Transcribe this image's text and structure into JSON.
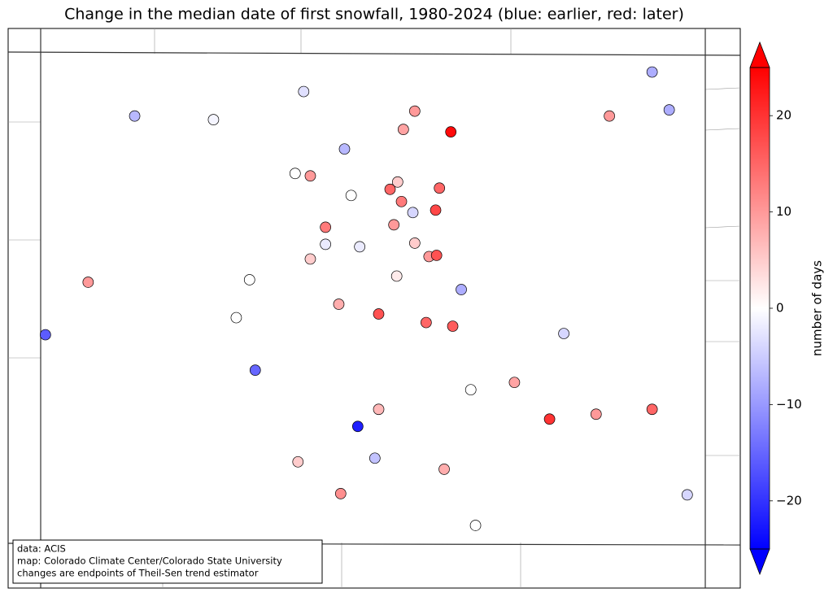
{
  "chart_data": {
    "type": "scatter",
    "title": "Change in the median date of first snowfall, 1980-2024 (blue: earlier, red: later)",
    "colorbar_label": "number of days",
    "annotations": [
      "data: ACIS",
      "map: Colorado Climate Center/Colorado State University",
      "changes are endpoints of Theil-Sen trend estimator"
    ],
    "xlim": [
      -109.05,
      -102.05
    ],
    "ylim": [
      37,
      41
    ],
    "clim": [
      -25,
      25
    ],
    "cticks": [
      {
        "value": -20,
        "label": "−20"
      },
      {
        "value": -10,
        "label": "−10"
      },
      0,
      10,
      20
    ],
    "cmap": [
      "#0000ff",
      "#ffffff",
      "#ff0000"
    ],
    "lon": [
      -106.28,
      -108.06,
      -107.23,
      -105.11,
      -105.23,
      -104.73,
      -103.06,
      -102.61,
      -102.43,
      -105.85,
      -106.37,
      -106.21,
      -105.29,
      -105.37,
      -104.85,
      -105.78,
      -105.25,
      -105.13,
      -104.89,
      -106.05,
      -105.33,
      -106.05,
      -105.69,
      -105.11,
      -106.21,
      -104.96,
      -104.88,
      -108.55,
      -106.85,
      -105.3,
      -104.62,
      -105.91,
      -105.49,
      -106.99,
      -104.99,
      -104.71,
      -109.0,
      -103.54,
      -106.79,
      -104.06,
      -104.52,
      -105.49,
      -103.69,
      -103.2,
      -102.61,
      -105.71,
      -105.53,
      -106.34,
      -104.8,
      -105.89,
      -102.24,
      -104.47
    ],
    "lat": [
      40.69,
      40.49,
      40.46,
      40.53,
      40.38,
      40.36,
      40.49,
      40.85,
      40.54,
      40.22,
      40.02,
      40.0,
      39.95,
      39.89,
      39.9,
      39.84,
      39.79,
      39.7,
      39.72,
      39.58,
      39.6,
      39.44,
      39.42,
      39.45,
      39.32,
      39.34,
      39.35,
      39.13,
      39.15,
      39.18,
      39.07,
      38.95,
      38.87,
      38.84,
      38.8,
      38.77,
      38.7,
      38.71,
      38.41,
      38.31,
      38.25,
      38.09,
      38.01,
      38.05,
      38.09,
      37.95,
      37.69,
      37.66,
      37.6,
      37.4,
      37.39,
      37.14
    ],
    "values": [
      -3,
      -7,
      -1,
      10,
      9,
      24,
      10,
      -8,
      -8,
      -7,
      0,
      10,
      5,
      15,
      15,
      0,
      13,
      -4,
      18,
      13,
      10,
      -2,
      -2,
      5,
      5,
      10,
      17,
      10,
      0,
      2,
      -8,
      8,
      17,
      0,
      15,
      16,
      -16,
      -4,
      -15,
      9,
      0,
      7,
      20,
      10,
      15,
      -22,
      -6,
      5,
      8,
      11,
      -4,
      0
    ]
  }
}
